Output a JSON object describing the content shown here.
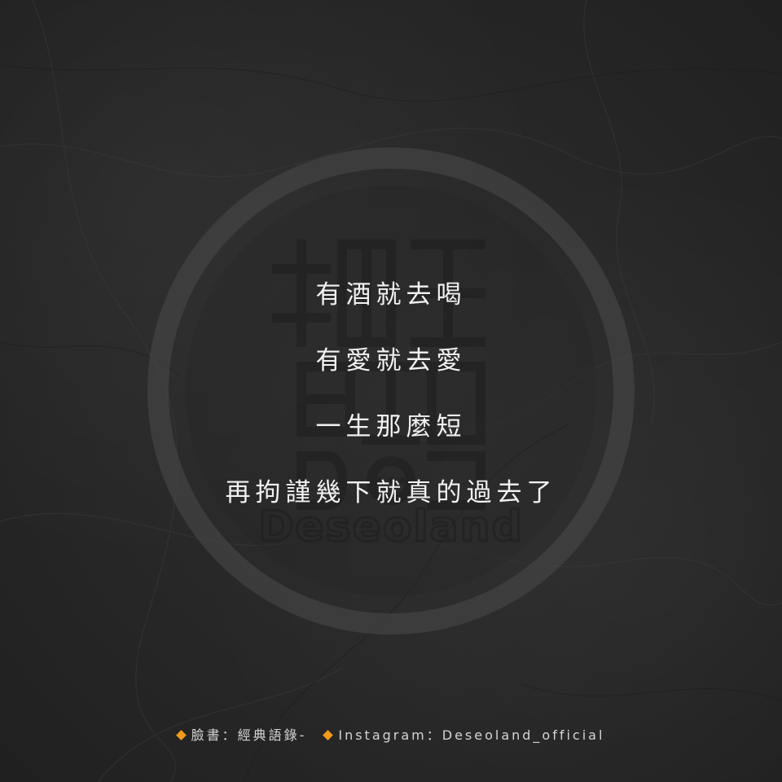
{
  "quote": {
    "lines": [
      "有酒就去喝",
      "有愛就去愛",
      "一生那麼短",
      "再拘謹幾下就真的過去了"
    ]
  },
  "watermark": {
    "logo_text": "經典語錄 Deseoland"
  },
  "footer": {
    "facebook": "臉書：經典語錄-",
    "instagram": "Instagram：Deseoland_official"
  },
  "colors": {
    "background": "#2a2a2a",
    "text": "#f2f2f2",
    "accent": "#f29a1c"
  },
  "icons": {
    "footer_bullet": "orange-diamond-icon"
  }
}
